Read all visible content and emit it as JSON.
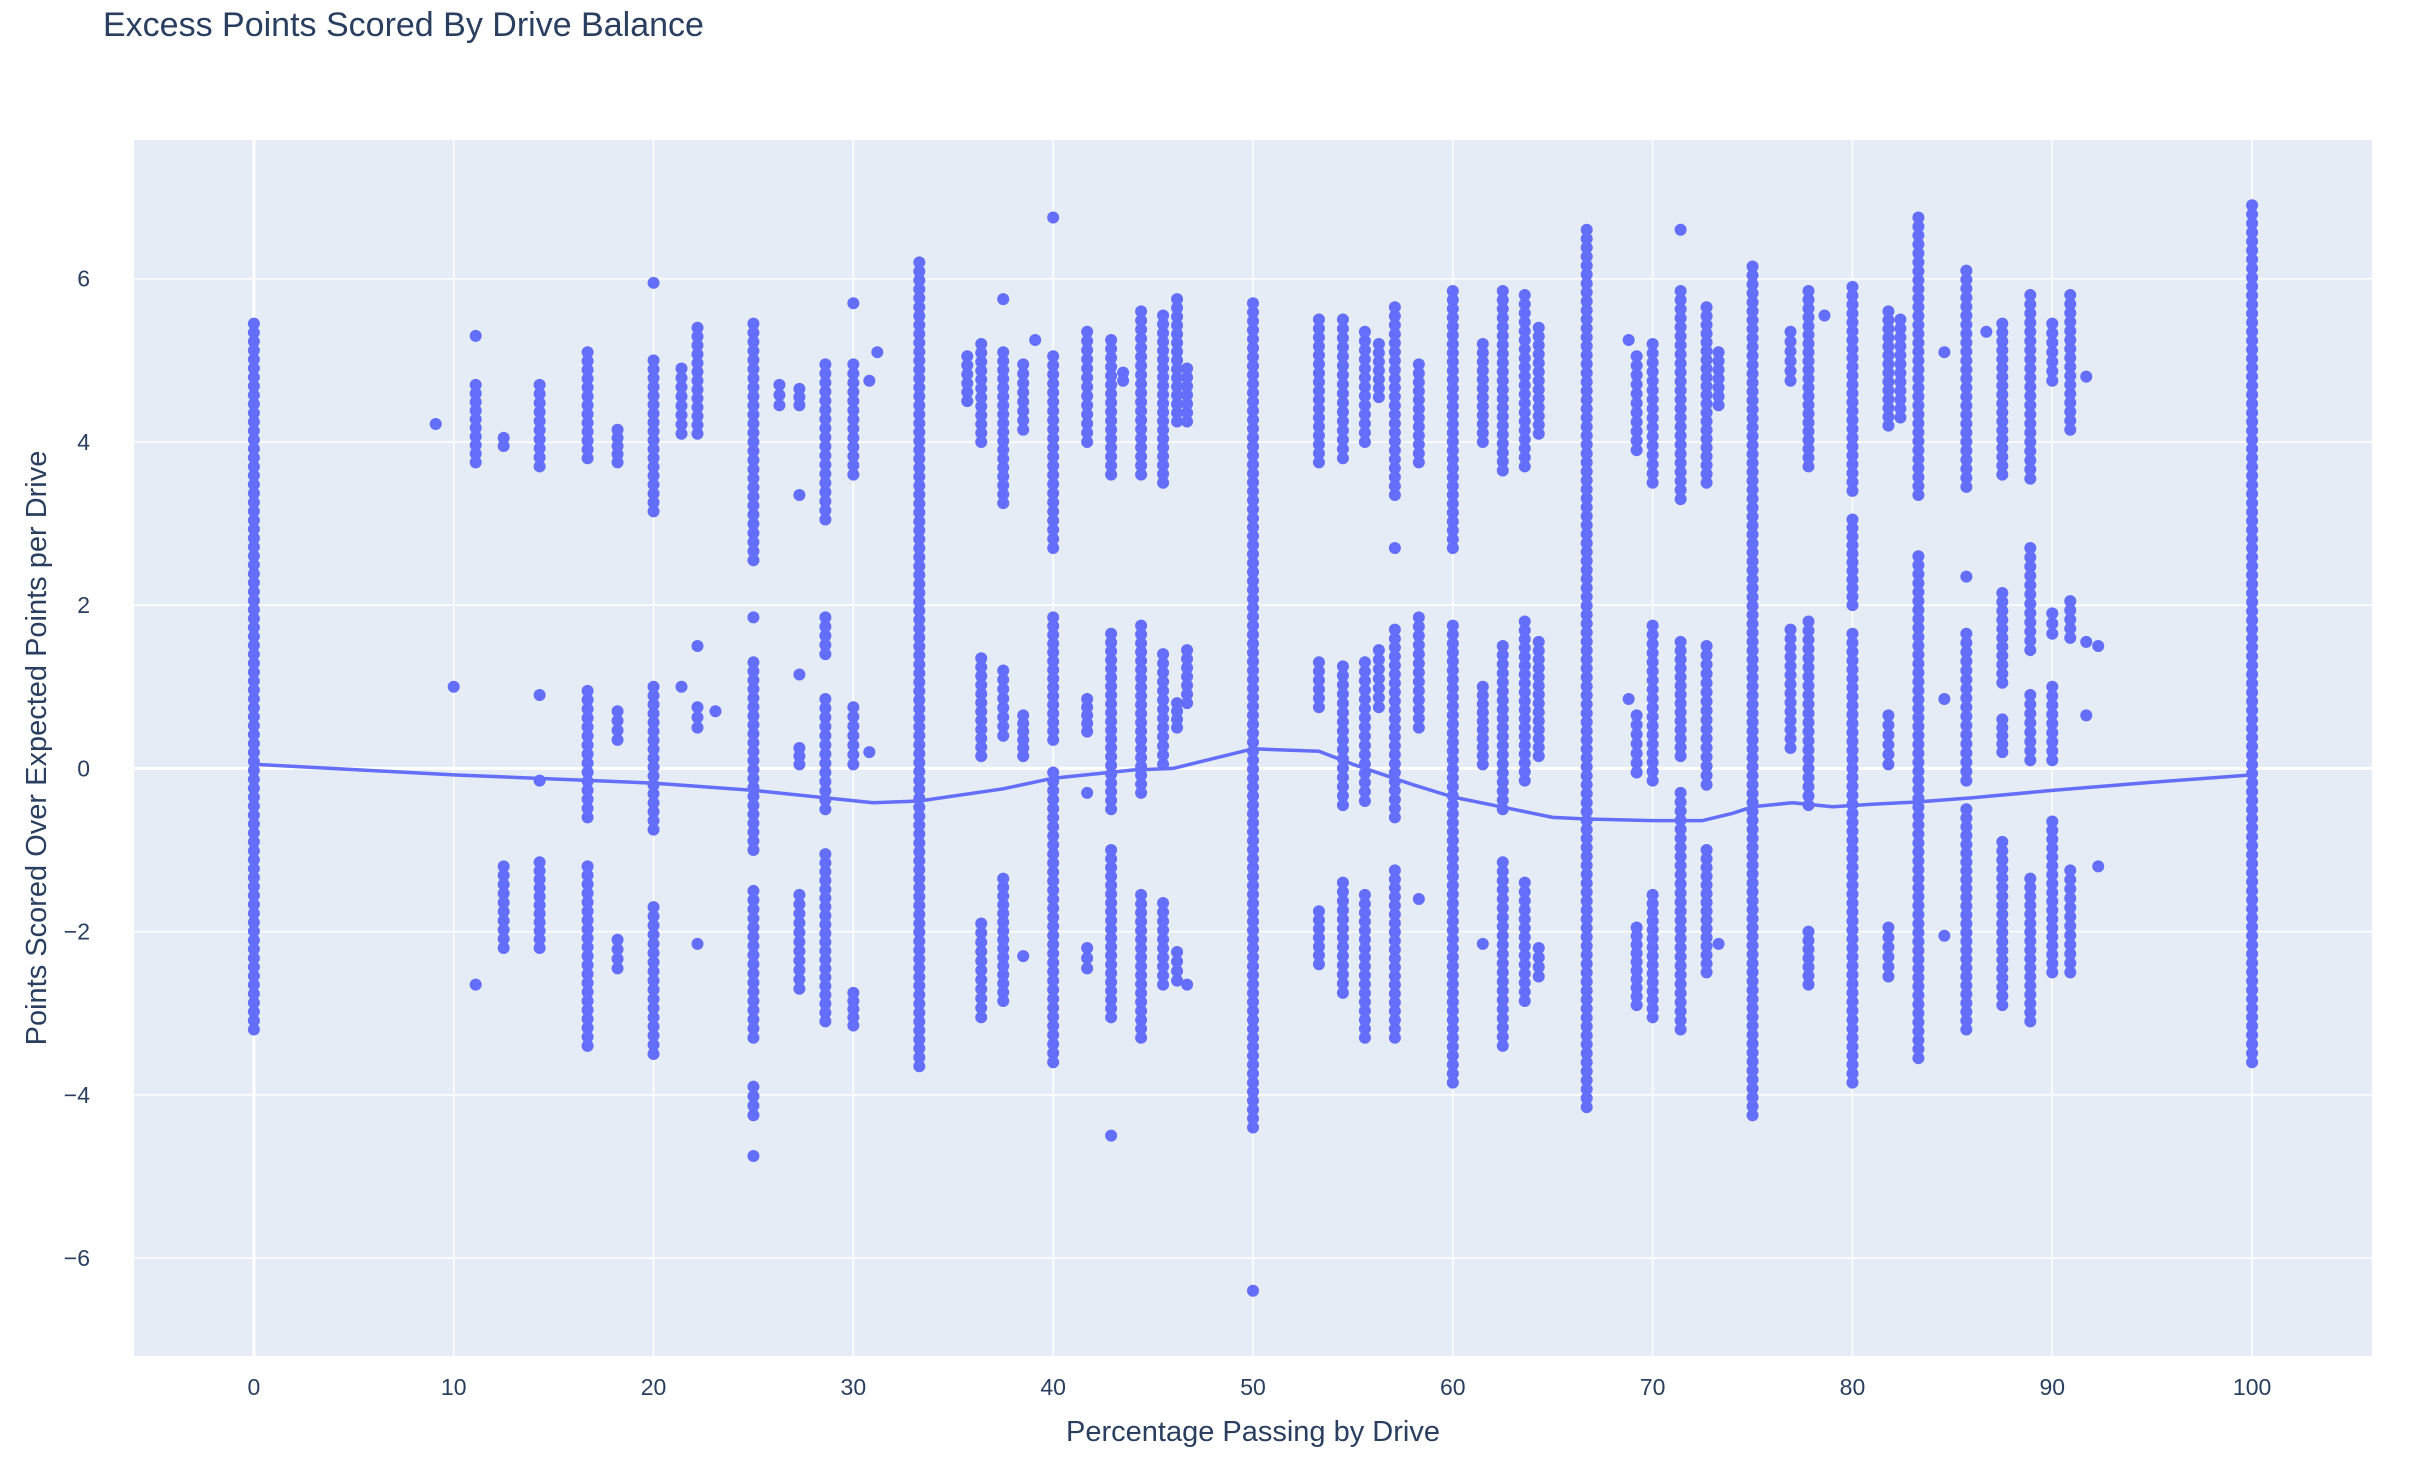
{
  "chart_data": {
    "type": "scatter",
    "title": "Excess Points Scored By Drive Balance",
    "xlabel": "Percentage Passing by Drive",
    "ylabel": "Points Scored Over Expected Points per Drive",
    "xlim": [
      -6,
      106
    ],
    "ylim": [
      -7.2,
      7.7
    ],
    "x_ticks": [
      0,
      10,
      20,
      30,
      40,
      50,
      60,
      70,
      80,
      90,
      100
    ],
    "y_ticks": [
      -6,
      -4,
      -2,
      0,
      2,
      4,
      6
    ],
    "y_tick_labels": [
      "−6",
      "−4",
      "−2",
      "0",
      "2",
      "4",
      "6"
    ],
    "grid": true,
    "colors": {
      "marker": "#636efa",
      "trend_line": "#636efa",
      "plot_background": "#e5ecf6",
      "grid": "#ffffff",
      "text": "#2a3f5f"
    },
    "column_points": [
      {
        "x": 0,
        "ranges": [
          [
            -3.2,
            5.45
          ]
        ]
      },
      {
        "x": 9.1,
        "ranges": [
          [
            4.22,
            4.22
          ]
        ]
      },
      {
        "x": 10,
        "ranges": [
          [
            1.0,
            1.0
          ]
        ]
      },
      {
        "x": 11.1,
        "ranges": [
          [
            -2.65,
            -2.65
          ],
          [
            3.75,
            4.7
          ],
          [
            5.3,
            5.3
          ]
        ]
      },
      {
        "x": 12.5,
        "ranges": [
          [
            -2.2,
            -1.2
          ],
          [
            3.95,
            4.05
          ]
        ]
      },
      {
        "x": 14.3,
        "ranges": [
          [
            -2.2,
            -1.15
          ],
          [
            -0.15,
            -0.15
          ],
          [
            0.9,
            0.9
          ],
          [
            3.7,
            4.7
          ]
        ]
      },
      {
        "x": 16.7,
        "ranges": [
          [
            -3.4,
            -1.2
          ],
          [
            -0.6,
            0.95
          ],
          [
            3.8,
            5.1
          ]
        ]
      },
      {
        "x": 18.2,
        "ranges": [
          [
            -2.45,
            -2.1
          ],
          [
            0.35,
            0.7
          ],
          [
            3.75,
            4.15
          ]
        ]
      },
      {
        "x": 20,
        "ranges": [
          [
            -3.5,
            -1.7
          ],
          [
            -0.75,
            1.0
          ],
          [
            3.15,
            5.0
          ],
          [
            5.95,
            5.95
          ]
        ]
      },
      {
        "x": 21.4,
        "ranges": [
          [
            1.0,
            1.0
          ],
          [
            4.1,
            4.9
          ]
        ]
      },
      {
        "x": 22.2,
        "ranges": [
          [
            -2.15,
            -2.15
          ],
          [
            0.5,
            0.75
          ],
          [
            1.5,
            1.5
          ],
          [
            4.1,
            5.4
          ]
        ]
      },
      {
        "x": 23.1,
        "ranges": [
          [
            0.7,
            0.7
          ]
        ]
      },
      {
        "x": 25,
        "ranges": [
          [
            -4.75,
            -4.75
          ],
          [
            -4.25,
            -3.9
          ],
          [
            -3.3,
            -1.5
          ],
          [
            -1.0,
            1.3
          ],
          [
            1.85,
            1.85
          ],
          [
            2.55,
            5.45
          ]
        ]
      },
      {
        "x": 26.3,
        "ranges": [
          [
            4.45,
            4.7
          ]
        ]
      },
      {
        "x": 27.3,
        "ranges": [
          [
            -2.7,
            -1.55
          ],
          [
            0.05,
            0.25
          ],
          [
            1.15,
            1.15
          ],
          [
            3.35,
            3.35
          ],
          [
            4.45,
            4.65
          ]
        ]
      },
      {
        "x": 28.6,
        "ranges": [
          [
            -3.1,
            -1.05
          ],
          [
            -0.5,
            0.85
          ],
          [
            1.4,
            1.85
          ],
          [
            3.05,
            4.95
          ]
        ]
      },
      {
        "x": 30,
        "ranges": [
          [
            -3.15,
            -2.75
          ],
          [
            0.05,
            0.75
          ],
          [
            3.6,
            4.95
          ],
          [
            5.7,
            5.7
          ]
        ]
      },
      {
        "x": 30.8,
        "ranges": [
          [
            0.2,
            0.2
          ],
          [
            4.75,
            4.75
          ]
        ]
      },
      {
        "x": 31.2,
        "ranges": [
          [
            5.1,
            5.1
          ]
        ]
      },
      {
        "x": 33.3,
        "ranges": [
          [
            -3.65,
            6.2
          ]
        ]
      },
      {
        "x": 35.7,
        "ranges": [
          [
            4.5,
            5.05
          ]
        ]
      },
      {
        "x": 36.4,
        "ranges": [
          [
            -3.05,
            -1.9
          ],
          [
            0.15,
            1.35
          ],
          [
            4.0,
            5.2
          ]
        ]
      },
      {
        "x": 37.5,
        "ranges": [
          [
            -2.85,
            -1.35
          ],
          [
            0.4,
            1.2
          ],
          [
            3.25,
            5.1
          ],
          [
            5.75,
            5.75
          ]
        ]
      },
      {
        "x": 38.5,
        "ranges": [
          [
            -2.3,
            -2.3
          ],
          [
            0.15,
            0.65
          ],
          [
            4.15,
            4.95
          ]
        ]
      },
      {
        "x": 39.1,
        "ranges": [
          [
            5.25,
            5.25
          ]
        ]
      },
      {
        "x": 40,
        "ranges": [
          [
            -3.6,
            -0.05
          ],
          [
            0.35,
            1.85
          ],
          [
            2.7,
            5.05
          ],
          [
            6.75,
            6.75
          ]
        ]
      },
      {
        "x": 41.7,
        "ranges": [
          [
            -2.45,
            -2.2
          ],
          [
            -0.3,
            -0.3
          ],
          [
            0.45,
            0.85
          ],
          [
            4.0,
            5.35
          ]
        ]
      },
      {
        "x": 42.9,
        "ranges": [
          [
            -4.5,
            -4.5
          ],
          [
            -3.05,
            -1.0
          ],
          [
            -0.5,
            1.65
          ],
          [
            3.6,
            5.25
          ]
        ]
      },
      {
        "x": 43.5,
        "ranges": [
          [
            4.75,
            4.85
          ]
        ]
      },
      {
        "x": 44.4,
        "ranges": [
          [
            -3.3,
            -1.55
          ],
          [
            -0.3,
            1.75
          ],
          [
            3.6,
            5.6
          ]
        ]
      },
      {
        "x": 45.5,
        "ranges": [
          [
            -2.65,
            -1.65
          ],
          [
            0.05,
            1.4
          ],
          [
            3.5,
            5.55
          ]
        ]
      },
      {
        "x": 46.2,
        "ranges": [
          [
            -2.6,
            -2.25
          ],
          [
            0.5,
            0.8
          ],
          [
            4.25,
            5.75
          ]
        ]
      },
      {
        "x": 46.7,
        "ranges": [
          [
            -2.65,
            -2.65
          ],
          [
            0.8,
            1.45
          ],
          [
            4.25,
            4.9
          ]
        ]
      },
      {
        "x": 50,
        "ranges": [
          [
            -6.4,
            -6.4
          ],
          [
            -4.4,
            5.7
          ]
        ]
      },
      {
        "x": 53.3,
        "ranges": [
          [
            -2.4,
            -1.75
          ],
          [
            0.75,
            1.3
          ],
          [
            3.75,
            5.5
          ]
        ]
      },
      {
        "x": 54.5,
        "ranges": [
          [
            -2.75,
            -1.4
          ],
          [
            -0.45,
            1.25
          ],
          [
            3.8,
            5.5
          ]
        ]
      },
      {
        "x": 55.6,
        "ranges": [
          [
            -3.3,
            -1.55
          ],
          [
            -0.4,
            1.3
          ],
          [
            4.0,
            5.35
          ]
        ]
      },
      {
        "x": 56.3,
        "ranges": [
          [
            0.75,
            1.45
          ],
          [
            4.55,
            5.2
          ]
        ]
      },
      {
        "x": 57.1,
        "ranges": [
          [
            -3.3,
            -1.25
          ],
          [
            -0.6,
            1.7
          ],
          [
            2.7,
            2.7
          ],
          [
            3.35,
            5.65
          ]
        ]
      },
      {
        "x": 58.3,
        "ranges": [
          [
            -1.6,
            -1.6
          ],
          [
            0.5,
            1.85
          ],
          [
            3.75,
            4.95
          ]
        ]
      },
      {
        "x": 60,
        "ranges": [
          [
            -3.85,
            1.75
          ],
          [
            2.7,
            5.85
          ]
        ]
      },
      {
        "x": 61.5,
        "ranges": [
          [
            -2.15,
            -2.15
          ],
          [
            0.05,
            1.0
          ],
          [
            4.0,
            5.2
          ]
        ]
      },
      {
        "x": 62.5,
        "ranges": [
          [
            -3.4,
            -1.15
          ],
          [
            -0.5,
            1.5
          ],
          [
            3.65,
            5.85
          ]
        ]
      },
      {
        "x": 63.6,
        "ranges": [
          [
            -2.85,
            -1.4
          ],
          [
            -0.15,
            1.8
          ],
          [
            3.7,
            5.8
          ]
        ]
      },
      {
        "x": 64.3,
        "ranges": [
          [
            -2.55,
            -2.2
          ],
          [
            0.15,
            1.55
          ],
          [
            4.1,
            5.4
          ]
        ]
      },
      {
        "x": 66.7,
        "ranges": [
          [
            -4.15,
            6.6
          ]
        ]
      },
      {
        "x": 68.8,
        "ranges": [
          [
            0.85,
            0.85
          ],
          [
            5.25,
            5.25
          ]
        ]
      },
      {
        "x": 69.2,
        "ranges": [
          [
            -2.9,
            -1.95
          ],
          [
            -0.05,
            0.65
          ],
          [
            3.9,
            5.05
          ]
        ]
      },
      {
        "x": 70,
        "ranges": [
          [
            -3.05,
            -1.55
          ],
          [
            -0.15,
            1.75
          ],
          [
            3.5,
            5.2
          ]
        ]
      },
      {
        "x": 71.4,
        "ranges": [
          [
            -3.2,
            -0.3
          ],
          [
            0.15,
            1.55
          ],
          [
            3.3,
            5.85
          ],
          [
            6.6,
            6.6
          ]
        ]
      },
      {
        "x": 72.7,
        "ranges": [
          [
            -2.5,
            -1.0
          ],
          [
            -0.2,
            1.5
          ],
          [
            3.5,
            5.65
          ]
        ]
      },
      {
        "x": 73.3,
        "ranges": [
          [
            -2.15,
            -2.15
          ],
          [
            4.45,
            5.1
          ]
        ]
      },
      {
        "x": 75,
        "ranges": [
          [
            -4.25,
            6.15
          ]
        ]
      },
      {
        "x": 76.9,
        "ranges": [
          [
            0.25,
            1.7
          ],
          [
            4.75,
            5.35
          ]
        ]
      },
      {
        "x": 77.8,
        "ranges": [
          [
            -2.65,
            -2.0
          ],
          [
            -0.45,
            1.8
          ],
          [
            3.7,
            5.85
          ]
        ]
      },
      {
        "x": 78.6,
        "ranges": [
          [
            5.55,
            5.55
          ]
        ]
      },
      {
        "x": 80,
        "ranges": [
          [
            -3.85,
            1.65
          ],
          [
            2.0,
            3.05
          ],
          [
            3.4,
            5.9
          ]
        ]
      },
      {
        "x": 81.8,
        "ranges": [
          [
            -2.55,
            -1.95
          ],
          [
            0.05,
            0.65
          ],
          [
            4.2,
            5.6
          ]
        ]
      },
      {
        "x": 82.4,
        "ranges": [
          [
            4.3,
            5.5
          ]
        ]
      },
      {
        "x": 83.3,
        "ranges": [
          [
            -3.55,
            2.6
          ],
          [
            3.35,
            6.75
          ]
        ]
      },
      {
        "x": 84.6,
        "ranges": [
          [
            -2.05,
            -2.05
          ],
          [
            0.85,
            0.85
          ],
          [
            5.1,
            5.1
          ]
        ]
      },
      {
        "x": 85.7,
        "ranges": [
          [
            -3.2,
            -0.5
          ],
          [
            -0.15,
            1.65
          ],
          [
            2.35,
            2.35
          ],
          [
            3.45,
            6.1
          ]
        ]
      },
      {
        "x": 86.7,
        "ranges": [
          [
            5.35,
            5.35
          ]
        ]
      },
      {
        "x": 87.5,
        "ranges": [
          [
            -2.9,
            -0.9
          ],
          [
            0.2,
            0.6
          ],
          [
            1.05,
            2.15
          ],
          [
            3.6,
            5.45
          ]
        ]
      },
      {
        "x": 88.9,
        "ranges": [
          [
            -3.1,
            -1.35
          ],
          [
            0.1,
            0.9
          ],
          [
            1.45,
            2.7
          ],
          [
            3.55,
            5.8
          ]
        ]
      },
      {
        "x": 90,
        "ranges": [
          [
            -2.5,
            -0.65
          ],
          [
            0.1,
            1.0
          ],
          [
            1.65,
            1.9
          ],
          [
            4.75,
            5.45
          ]
        ]
      },
      {
        "x": 90.9,
        "ranges": [
          [
            -2.5,
            -1.25
          ],
          [
            1.6,
            2.05
          ],
          [
            4.15,
            5.8
          ]
        ]
      },
      {
        "x": 91.7,
        "ranges": [
          [
            0.65,
            0.65
          ],
          [
            1.55,
            1.55
          ],
          [
            4.8,
            4.8
          ]
        ]
      },
      {
        "x": 92.3,
        "ranges": [
          [
            -1.2,
            -1.2
          ],
          [
            1.5,
            1.5
          ]
        ]
      },
      {
        "x": 100,
        "ranges": [
          [
            -3.6,
            6.9
          ]
        ]
      }
    ],
    "trend_line": {
      "type": "line",
      "x": [
        0,
        10,
        20,
        25,
        31,
        33.3,
        37.5,
        40,
        44,
        46,
        50,
        53.3,
        55,
        58,
        60,
        63,
        65,
        66.7,
        70,
        72.5,
        74,
        75,
        77,
        79,
        81,
        83.3,
        86,
        90,
        95,
        100
      ],
      "y": [
        0.05,
        -0.08,
        -0.18,
        -0.27,
        -0.42,
        -0.4,
        -0.25,
        -0.12,
        -0.02,
        0.0,
        0.24,
        0.21,
        0.05,
        -0.2,
        -0.35,
        -0.5,
        -0.6,
        -0.62,
        -0.64,
        -0.64,
        -0.55,
        -0.47,
        -0.42,
        -0.47,
        -0.44,
        -0.41,
        -0.36,
        -0.27,
        -0.17,
        -0.08
      ]
    }
  }
}
